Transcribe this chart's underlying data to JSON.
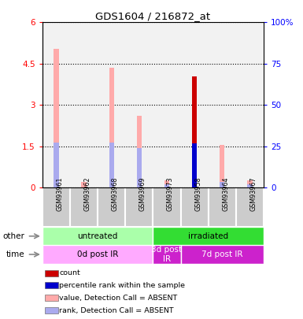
{
  "title": "GDS1604 / 216872_at",
  "samples": [
    "GSM93961",
    "GSM93962",
    "GSM93968",
    "GSM93969",
    "GSM93973",
    "GSM93958",
    "GSM93964",
    "GSM93967"
  ],
  "absent_value_bars": [
    5.05,
    0.2,
    4.35,
    2.6,
    0.28,
    0.0,
    1.55,
    0.28
  ],
  "absent_rank_bars": [
    1.65,
    0.0,
    1.65,
    1.45,
    0.12,
    1.6,
    0.22,
    0.12
  ],
  "count_values": [
    0.0,
    0.0,
    0.0,
    0.0,
    0.0,
    4.05,
    0.0,
    0.0
  ],
  "percentile_values": [
    0.0,
    0.0,
    0.0,
    0.0,
    0.0,
    1.6,
    0.0,
    0.0
  ],
  "count_color": "#cc0000",
  "percentile_color": "#0000cc",
  "absent_value_color": "#ffaaaa",
  "absent_rank_color": "#aaaaee",
  "ylim": [
    0,
    6
  ],
  "yticks": [
    0,
    1.5,
    3.0,
    4.5,
    6.0
  ],
  "ytick_labels": [
    "0",
    "1.5",
    "3",
    "4.5",
    "6"
  ],
  "y2ticks": [
    0,
    25,
    50,
    75,
    100
  ],
  "y2tick_labels": [
    "0",
    "25",
    "50",
    "75",
    "100%"
  ],
  "groups_other": [
    {
      "label": "untreated",
      "start": 0,
      "end": 4,
      "color": "#aaffaa"
    },
    {
      "label": "irradiated",
      "start": 4,
      "end": 8,
      "color": "#33dd33"
    }
  ],
  "groups_time": [
    {
      "label": "0d post IR",
      "start": 0,
      "end": 4,
      "color": "#ffaaff"
    },
    {
      "label": "3d post\nIR",
      "start": 4,
      "end": 5,
      "color": "#cc22cc"
    },
    {
      "label": "7d post IR",
      "start": 5,
      "end": 8,
      "color": "#cc22cc"
    }
  ],
  "other_label": "other",
  "time_label": "time",
  "legend_items": [
    {
      "label": "count",
      "color": "#cc0000"
    },
    {
      "label": "percentile rank within the sample",
      "color": "#0000cc"
    },
    {
      "label": "value, Detection Call = ABSENT",
      "color": "#ffaaaa"
    },
    {
      "label": "rank, Detection Call = ABSENT",
      "color": "#aaaaee"
    }
  ],
  "bar_width": 0.18,
  "fig_width": 3.85,
  "fig_height": 4.05
}
